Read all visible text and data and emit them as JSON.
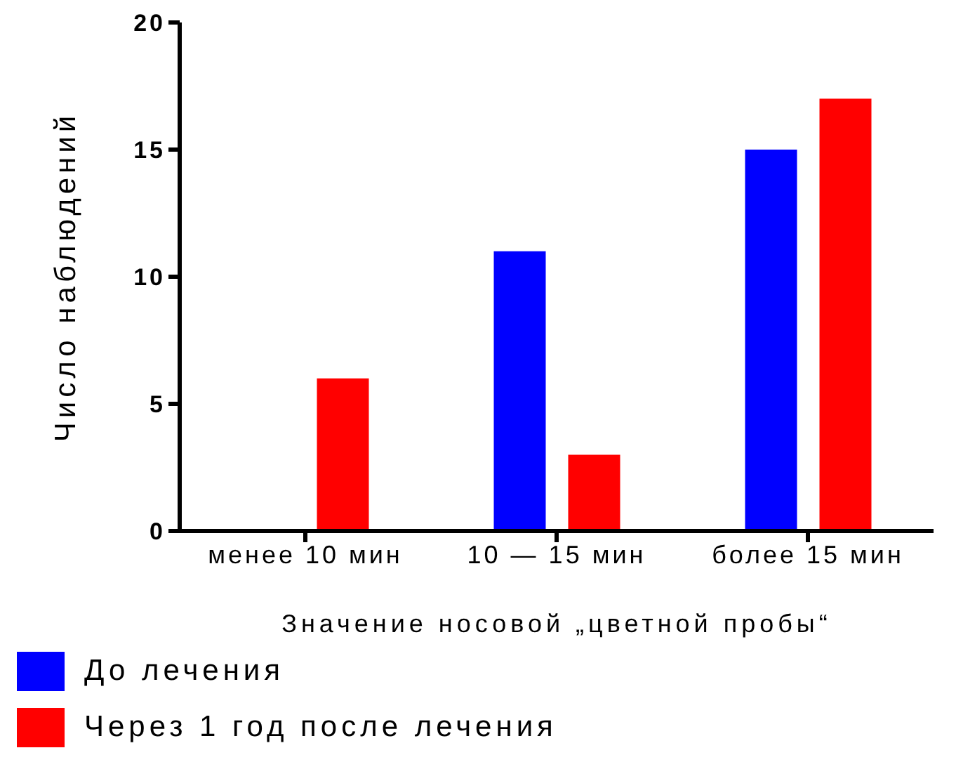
{
  "chart_data": {
    "type": "bar",
    "xlabel": "Значение носовой „цветной пробы“",
    "ylabel": "Число наблюдений",
    "categories": [
      "менее 10 мин",
      "10 — 15 мин",
      "более 15 мин"
    ],
    "series": [
      {
        "name": "До лечения",
        "color": "#0000ff",
        "values": [
          0,
          11,
          15
        ]
      },
      {
        "name": "Через 1 год после лечения",
        "color": "#ff0000",
        "values": [
          6,
          3,
          17
        ]
      }
    ],
    "ylim": [
      0,
      20
    ],
    "yticks": [
      0,
      5,
      10,
      15,
      20
    ],
    "grid": false,
    "legend": "bottom left"
  }
}
